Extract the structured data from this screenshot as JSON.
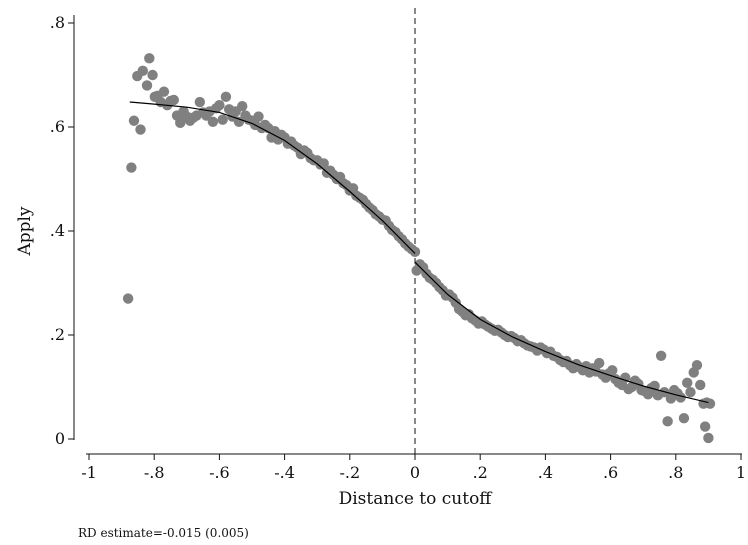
{
  "chart_data": {
    "type": "scatter",
    "xlabel": "Distance to cutoff",
    "ylabel": "Apply",
    "xlim": [
      -1,
      1
    ],
    "ylim": [
      0,
      0.8
    ],
    "xticks": [
      "-1",
      "-.8",
      "-.6",
      "-.4",
      "-.2",
      "0",
      ".2",
      ".4",
      ".6",
      ".8",
      "1"
    ],
    "yticks": [
      "0",
      ".2",
      ".4",
      ".6",
      ".8"
    ],
    "grid": false,
    "cutoff": 0,
    "point_color": "#808080",
    "line_color": "#000000",
    "scatter": [
      [
        -0.88,
        0.27
      ],
      [
        -0.87,
        0.522
      ],
      [
        -0.862,
        0.612
      ],
      [
        -0.852,
        0.698
      ],
      [
        -0.842,
        0.595
      ],
      [
        -0.835,
        0.708
      ],
      [
        -0.822,
        0.68
      ],
      [
        -0.815,
        0.732
      ],
      [
        -0.805,
        0.7
      ],
      [
        -0.798,
        0.658
      ],
      [
        -0.79,
        0.66
      ],
      [
        -0.78,
        0.648
      ],
      [
        -0.77,
        0.668
      ],
      [
        -0.76,
        0.642
      ],
      [
        -0.75,
        0.65
      ],
      [
        -0.74,
        0.652
      ],
      [
        -0.73,
        0.622
      ],
      [
        -0.72,
        0.608
      ],
      [
        -0.71,
        0.63
      ],
      [
        -0.7,
        0.62
      ],
      [
        -0.69,
        0.612
      ],
      [
        -0.68,
        0.618
      ],
      [
        -0.67,
        0.622
      ],
      [
        -0.66,
        0.648
      ],
      [
        -0.65,
        0.628
      ],
      [
        -0.64,
        0.622
      ],
      [
        -0.63,
        0.63
      ],
      [
        -0.62,
        0.61
      ],
      [
        -0.61,
        0.636
      ],
      [
        -0.6,
        0.642
      ],
      [
        -0.59,
        0.614
      ],
      [
        -0.58,
        0.658
      ],
      [
        -0.57,
        0.634
      ],
      [
        -0.56,
        0.62
      ],
      [
        -0.55,
        0.63
      ],
      [
        -0.54,
        0.61
      ],
      [
        -0.53,
        0.64
      ],
      [
        -0.52,
        0.622
      ],
      [
        -0.51,
        0.614
      ],
      [
        -0.5,
        0.612
      ],
      [
        -0.49,
        0.604
      ],
      [
        -0.48,
        0.62
      ],
      [
        -0.47,
        0.598
      ],
      [
        -0.46,
        0.604
      ],
      [
        -0.45,
        0.598
      ],
      [
        -0.44,
        0.58
      ],
      [
        -0.43,
        0.592
      ],
      [
        -0.42,
        0.576
      ],
      [
        -0.41,
        0.585
      ],
      [
        -0.4,
        0.58
      ],
      [
        -0.39,
        0.568
      ],
      [
        -0.38,
        0.572
      ],
      [
        -0.37,
        0.564
      ],
      [
        -0.36,
        0.56
      ],
      [
        -0.35,
        0.548
      ],
      [
        -0.34,
        0.555
      ],
      [
        -0.33,
        0.55
      ],
      [
        -0.32,
        0.54
      ],
      [
        -0.31,
        0.536
      ],
      [
        -0.3,
        0.536
      ],
      [
        -0.29,
        0.528
      ],
      [
        -0.28,
        0.53
      ],
      [
        -0.27,
        0.512
      ],
      [
        -0.26,
        0.516
      ],
      [
        -0.25,
        0.508
      ],
      [
        -0.24,
        0.5
      ],
      [
        -0.23,
        0.504
      ],
      [
        -0.22,
        0.492
      ],
      [
        -0.21,
        0.488
      ],
      [
        -0.2,
        0.478
      ],
      [
        -0.19,
        0.482
      ],
      [
        -0.18,
        0.468
      ],
      [
        -0.17,
        0.464
      ],
      [
        -0.16,
        0.46
      ],
      [
        -0.15,
        0.452
      ],
      [
        -0.14,
        0.445
      ],
      [
        -0.13,
        0.44
      ],
      [
        -0.12,
        0.432
      ],
      [
        -0.11,
        0.428
      ],
      [
        -0.1,
        0.422
      ],
      [
        -0.09,
        0.42
      ],
      [
        -0.08,
        0.41
      ],
      [
        -0.07,
        0.402
      ],
      [
        -0.06,
        0.398
      ],
      [
        -0.05,
        0.39
      ],
      [
        -0.04,
        0.384
      ],
      [
        -0.03,
        0.376
      ],
      [
        -0.02,
        0.37
      ],
      [
        -0.01,
        0.365
      ],
      [
        0.0,
        0.36
      ],
      [
        0.005,
        0.324
      ],
      [
        0.015,
        0.336
      ],
      [
        0.025,
        0.33
      ],
      [
        0.035,
        0.318
      ],
      [
        0.045,
        0.31
      ],
      [
        0.055,
        0.306
      ],
      [
        0.065,
        0.3
      ],
      [
        0.075,
        0.292
      ],
      [
        0.085,
        0.286
      ],
      [
        0.095,
        0.276
      ],
      [
        0.105,
        0.278
      ],
      [
        0.115,
        0.272
      ],
      [
        0.125,
        0.262
      ],
      [
        0.135,
        0.25
      ],
      [
        0.145,
        0.245
      ],
      [
        0.155,
        0.238
      ],
      [
        0.165,
        0.24
      ],
      [
        0.175,
        0.232
      ],
      [
        0.185,
        0.228
      ],
      [
        0.195,
        0.222
      ],
      [
        0.205,
        0.226
      ],
      [
        0.215,
        0.22
      ],
      [
        0.225,
        0.216
      ],
      [
        0.235,
        0.212
      ],
      [
        0.245,
        0.208
      ],
      [
        0.255,
        0.21
      ],
      [
        0.265,
        0.205
      ],
      [
        0.275,
        0.2
      ],
      [
        0.285,
        0.196
      ],
      [
        0.295,
        0.198
      ],
      [
        0.305,
        0.194
      ],
      [
        0.315,
        0.188
      ],
      [
        0.325,
        0.19
      ],
      [
        0.335,
        0.184
      ],
      [
        0.345,
        0.18
      ],
      [
        0.355,
        0.178
      ],
      [
        0.365,
        0.176
      ],
      [
        0.375,
        0.17
      ],
      [
        0.385,
        0.176
      ],
      [
        0.395,
        0.172
      ],
      [
        0.405,
        0.165
      ],
      [
        0.415,
        0.168
      ],
      [
        0.425,
        0.16
      ],
      [
        0.435,
        0.158
      ],
      [
        0.445,
        0.152
      ],
      [
        0.455,
        0.148
      ],
      [
        0.465,
        0.15
      ],
      [
        0.475,
        0.142
      ],
      [
        0.485,
        0.136
      ],
      [
        0.495,
        0.144
      ],
      [
        0.505,
        0.138
      ],
      [
        0.515,
        0.132
      ],
      [
        0.525,
        0.14
      ],
      [
        0.535,
        0.128
      ],
      [
        0.545,
        0.136
      ],
      [
        0.555,
        0.13
      ],
      [
        0.565,
        0.146
      ],
      [
        0.575,
        0.124
      ],
      [
        0.585,
        0.118
      ],
      [
        0.595,
        0.126
      ],
      [
        0.605,
        0.132
      ],
      [
        0.615,
        0.115
      ],
      [
        0.625,
        0.108
      ],
      [
        0.635,
        0.104
      ],
      [
        0.645,
        0.118
      ],
      [
        0.655,
        0.096
      ],
      [
        0.665,
        0.1
      ],
      [
        0.675,
        0.112
      ],
      [
        0.685,
        0.106
      ],
      [
        0.695,
        0.094
      ],
      [
        0.705,
        0.092
      ],
      [
        0.715,
        0.086
      ],
      [
        0.725,
        0.098
      ],
      [
        0.735,
        0.102
      ],
      [
        0.745,
        0.084
      ],
      [
        0.755,
        0.16
      ],
      [
        0.765,
        0.09
      ],
      [
        0.775,
        0.034
      ],
      [
        0.785,
        0.078
      ],
      [
        0.795,
        0.094
      ],
      [
        0.805,
        0.088
      ],
      [
        0.815,
        0.08
      ],
      [
        0.825,
        0.04
      ],
      [
        0.835,
        0.108
      ],
      [
        0.845,
        0.09
      ],
      [
        0.855,
        0.128
      ],
      [
        0.865,
        0.142
      ],
      [
        0.875,
        0.104
      ],
      [
        0.885,
        0.068
      ],
      [
        0.89,
        0.024
      ],
      [
        0.895,
        0.07
      ],
      [
        0.9,
        0.002
      ],
      [
        0.905,
        0.068
      ]
    ],
    "fit_left": [
      [
        -0.875,
        0.648
      ],
      [
        -0.8,
        0.644
      ],
      [
        -0.7,
        0.638
      ],
      [
        -0.6,
        0.628
      ],
      [
        -0.5,
        0.607
      ],
      [
        -0.4,
        0.574
      ],
      [
        -0.3,
        0.529
      ],
      [
        -0.2,
        0.476
      ],
      [
        -0.1,
        0.42
      ],
      [
        0.0,
        0.357
      ]
    ],
    "fit_right": [
      [
        0.0,
        0.34
      ],
      [
        0.1,
        0.278
      ],
      [
        0.2,
        0.23
      ],
      [
        0.3,
        0.196
      ],
      [
        0.4,
        0.168
      ],
      [
        0.5,
        0.143
      ],
      [
        0.6,
        0.122
      ],
      [
        0.7,
        0.102
      ],
      [
        0.8,
        0.085
      ],
      [
        0.9,
        0.07
      ]
    ],
    "annotation": "RD estimate=-0.015 (0.005)"
  }
}
